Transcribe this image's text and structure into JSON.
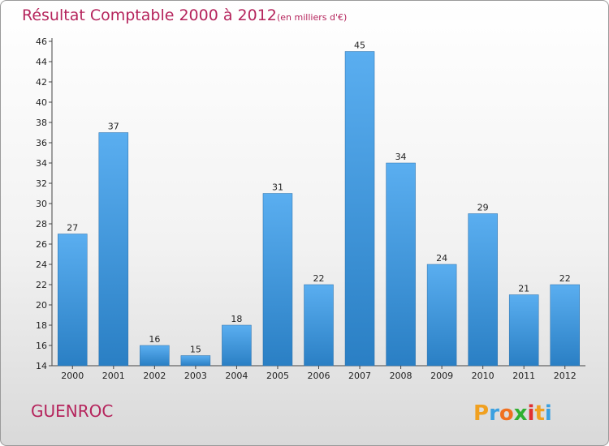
{
  "chart_data": {
    "type": "bar",
    "title": "Résultat Comptable 2000 à 2012",
    "subtitle": "(en milliers d'€)",
    "categories": [
      "2000",
      "2001",
      "2002",
      "2003",
      "2004",
      "2005",
      "2006",
      "2007",
      "2008",
      "2009",
      "2010",
      "2011",
      "2012"
    ],
    "values": [
      27,
      37,
      16,
      15,
      18,
      31,
      22,
      45,
      34,
      24,
      29,
      21,
      22
    ],
    "ylim": [
      14,
      46
    ],
    "yticks": [
      "14",
      "16",
      "18",
      "20",
      "22",
      "24",
      "26",
      "28",
      "30",
      "32",
      "34",
      "36",
      "38",
      "40",
      "42",
      "44",
      "46"
    ],
    "grid": false,
    "bar_color_top": "#5aaef0",
    "bar_color_bottom": "#2a7fc4"
  },
  "commune": "GUENROC",
  "logo": {
    "letters": [
      "P",
      "r",
      "o",
      "x",
      "i",
      "t",
      "i"
    ],
    "colors": [
      "#f0a020",
      "#3aa0e0",
      "#f07020",
      "#30b030",
      "#e03030",
      "#f0a020",
      "#3aa0e0"
    ]
  },
  "colors": {
    "accent": "#b5245c"
  }
}
